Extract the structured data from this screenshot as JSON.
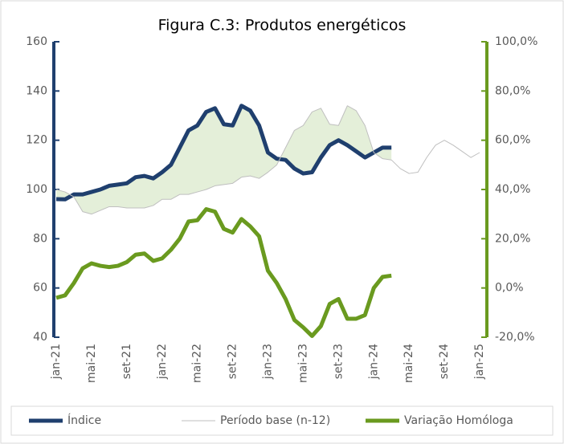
{
  "chart_data": {
    "type": "line",
    "title": "Figura C.3: Produtos energéticos",
    "categories": [
      "jan-21",
      null,
      null,
      null,
      "mai-21",
      null,
      null,
      null,
      "set-21",
      null,
      null,
      null,
      "jan-22",
      null,
      null,
      null,
      "mai-22",
      null,
      null,
      null,
      "set-22",
      null,
      null,
      null,
      "jan-23",
      null,
      null,
      null,
      "mai-23",
      null,
      null,
      null,
      "set-23",
      null,
      null,
      null,
      "jan-24",
      null,
      null,
      null,
      "mai-24",
      null,
      null,
      null,
      "set-24",
      null,
      null,
      null,
      "jan-25"
    ],
    "series": [
      {
        "name": "Índice",
        "color": "#1f3f6e",
        "axis": "y",
        "values": [
          96.1,
          96,
          98,
          98,
          99,
          100,
          101.5,
          102,
          102.5,
          105,
          105.5,
          104.5,
          107,
          110,
          117,
          124,
          126,
          131.5,
          133,
          126.5,
          126,
          134,
          132,
          126,
          115,
          112.5,
          112,
          108.5,
          106.5,
          107,
          113,
          118,
          120,
          118,
          115.5,
          113,
          115,
          117,
          117,
          null,
          null,
          null,
          null,
          null,
          null,
          null,
          null,
          null,
          null
        ]
      },
      {
        "name": "Período base (n-12)",
        "color": "#bfbfbf",
        "axis": "y",
        "values": [
          100,
          99,
          97,
          91,
          90,
          91.5,
          93,
          93,
          92.5,
          92.5,
          92.5,
          93.5,
          96,
          96,
          98,
          98,
          99,
          100,
          101.5,
          102,
          102.5,
          105,
          105.5,
          104.5,
          107,
          110,
          117,
          124,
          126,
          131.5,
          133,
          126.5,
          126,
          134,
          132,
          126,
          115,
          112.5,
          112,
          108.5,
          106.5,
          107,
          113,
          118,
          120,
          118,
          115.5,
          113,
          115
        ]
      },
      {
        "name": "Variação Homóloga",
        "color": "#6a9a1f",
        "axis": "y2",
        "values": [
          -4,
          -3,
          2,
          8,
          10,
          9,
          8.5,
          9,
          10.5,
          13.5,
          14,
          11,
          12,
          15.5,
          20,
          27,
          27.5,
          32,
          31,
          24,
          22.5,
          28,
          25,
          21,
          7,
          2,
          -4.5,
          -13,
          -16,
          -19.5,
          -15.5,
          -6.5,
          -4.5,
          -12.5,
          -12.5,
          -11,
          0,
          4.5,
          5,
          null,
          null,
          null,
          null,
          null,
          null,
          null,
          null,
          null,
          null
        ]
      }
    ],
    "ylim": [
      40,
      160
    ],
    "yticks": [
      40,
      60,
      80,
      100,
      120,
      140,
      160
    ],
    "y2lim": [
      -20,
      100
    ],
    "y2ticks": [
      {
        "value": -20,
        "label": "-20,0%"
      },
      {
        "value": 0,
        "label": "0,0%"
      },
      {
        "value": 20,
        "label": "20,0%"
      },
      {
        "value": 40,
        "label": "40,0%"
      },
      {
        "value": 60,
        "label": "60,0%"
      },
      {
        "value": 80,
        "label": "80,0%"
      },
      {
        "value": 100,
        "label": "100,0%"
      }
    ],
    "fill_between_color": "#e4efd9",
    "legend": "bottom"
  }
}
